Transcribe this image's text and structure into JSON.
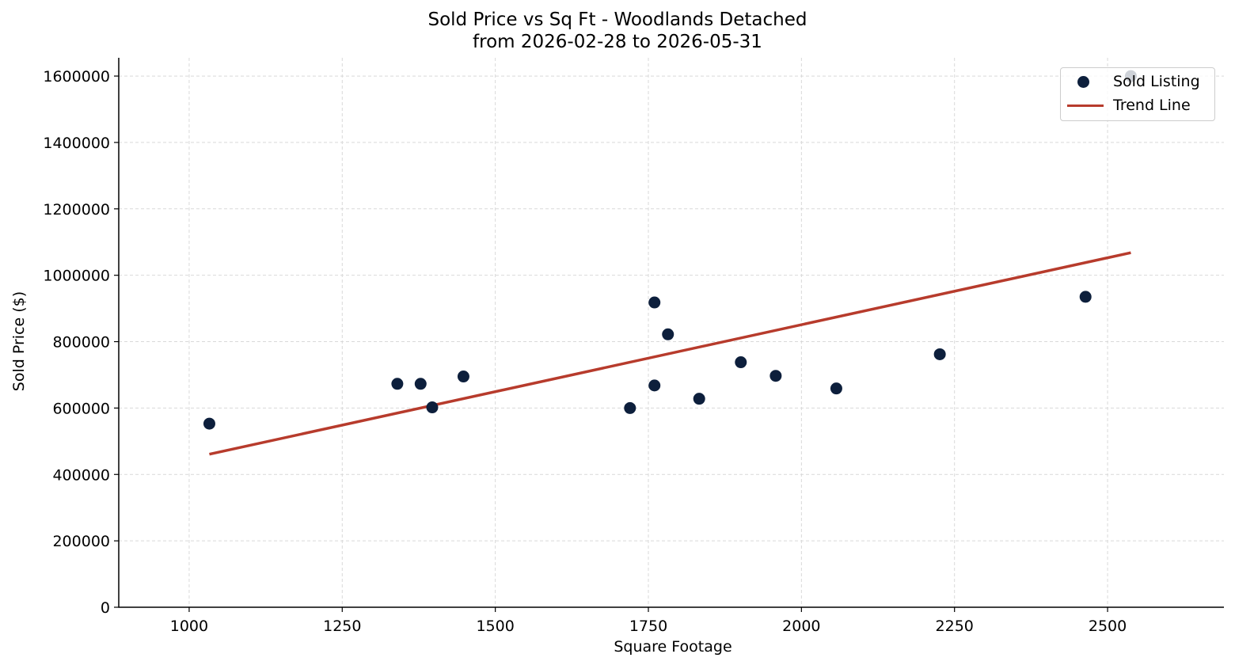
{
  "chart_data": {
    "type": "scatter",
    "title": "Sold Price vs Sq Ft - Woodlands Detached",
    "subtitle": "from 2026-02-28 to 2026-05-31",
    "xlabel": "Square Footage",
    "ylabel": "Sold Price ($)",
    "xlim": [
      885,
      2690
    ],
    "ylim": [
      0,
      1655000
    ],
    "xticks": [
      1000,
      1250,
      1500,
      1750,
      2000,
      2250,
      2500
    ],
    "yticks": [
      0,
      200000,
      400000,
      600000,
      800000,
      1000000,
      1200000,
      1400000,
      1600000
    ],
    "grid": true,
    "legend_position": "top-right",
    "series": [
      {
        "name": "Sold Listing",
        "kind": "scatter",
        "color": "#0d1f3c",
        "points": [
          {
            "x": 1033,
            "y": 553000
          },
          {
            "x": 1340,
            "y": 673000
          },
          {
            "x": 1378,
            "y": 673000
          },
          {
            "x": 1397,
            "y": 602000
          },
          {
            "x": 1448,
            "y": 695000
          },
          {
            "x": 1720,
            "y": 600000
          },
          {
            "x": 1760,
            "y": 918000
          },
          {
            "x": 1760,
            "y": 668000
          },
          {
            "x": 1782,
            "y": 822000
          },
          {
            "x": 1833,
            "y": 628000
          },
          {
            "x": 1901,
            "y": 738000
          },
          {
            "x": 1958,
            "y": 697000
          },
          {
            "x": 2057,
            "y": 659000
          },
          {
            "x": 2226,
            "y": 762000
          },
          {
            "x": 2464,
            "y": 935000
          },
          {
            "x": 2538,
            "y": 1600000
          }
        ]
      },
      {
        "name": "Trend Line",
        "kind": "line",
        "color": "#b73b2c",
        "points": [
          {
            "x": 1033,
            "y": 461000
          },
          {
            "x": 2538,
            "y": 1068000
          }
        ]
      }
    ]
  }
}
